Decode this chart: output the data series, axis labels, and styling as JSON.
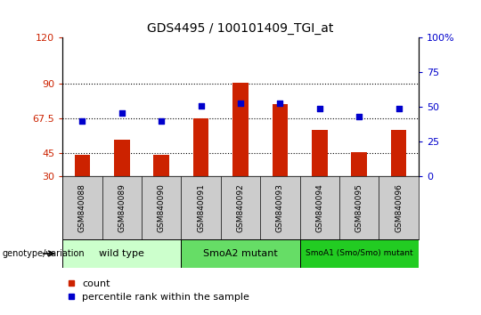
{
  "title": "GDS4495 / 100101409_TGI_at",
  "samples": [
    "GSM840088",
    "GSM840089",
    "GSM840090",
    "GSM840091",
    "GSM840092",
    "GSM840093",
    "GSM840094",
    "GSM840095",
    "GSM840096"
  ],
  "counts": [
    44,
    54,
    44,
    67.5,
    91,
    77,
    60,
    46,
    60
  ],
  "percentile_ranks": [
    40,
    46,
    40,
    51,
    53,
    53,
    49,
    43,
    49
  ],
  "ylim_left": [
    30,
    120
  ],
  "ylim_right": [
    0,
    100
  ],
  "yticks_left": [
    30,
    45,
    67.5,
    90,
    120
  ],
  "yticks_right": [
    0,
    25,
    50,
    75,
    100
  ],
  "ytick_labels_left": [
    "30",
    "45",
    "67.5",
    "90",
    "120"
  ],
  "ytick_labels_right": [
    "0",
    "25",
    "50",
    "75",
    "100%"
  ],
  "hlines": [
    45,
    67.5,
    90
  ],
  "groups": [
    {
      "label": "wild type",
      "samples": [
        0,
        1,
        2
      ],
      "color": "#ccffcc"
    },
    {
      "label": "SmoA2 mutant",
      "samples": [
        3,
        4,
        5
      ],
      "color": "#66dd66"
    },
    {
      "label": "SmoA1 (Smo/Smo) mutant",
      "samples": [
        6,
        7,
        8
      ],
      "color": "#22cc22"
    }
  ],
  "bar_color": "#cc2200",
  "dot_color": "#0000cc",
  "bar_width": 0.4,
  "dot_size": 25,
  "ylabel_left_color": "#cc2200",
  "ylabel_right_color": "#0000cc",
  "legend_count_color": "#cc2200",
  "legend_percentile_color": "#0000cc"
}
